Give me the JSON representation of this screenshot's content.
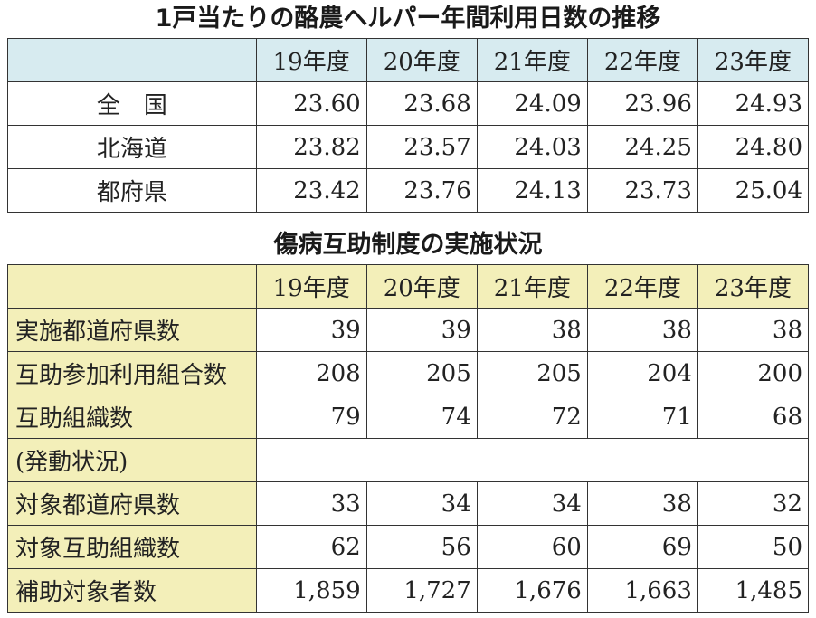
{
  "table1": {
    "title": "1戸当たりの酪農ヘルパー年間利用日数の推移",
    "years": [
      "19年度",
      "20年度",
      "21年度",
      "22年度",
      "23年度"
    ],
    "rows": [
      {
        "label": "全　国",
        "values": [
          "23.60",
          "23.68",
          "24.09",
          "23.96",
          "24.93"
        ]
      },
      {
        "label": "北海道",
        "values": [
          "23.82",
          "23.57",
          "24.03",
          "24.25",
          "24.80"
        ]
      },
      {
        "label": "都府県",
        "values": [
          "23.42",
          "23.76",
          "24.13",
          "23.73",
          "25.04"
        ]
      }
    ]
  },
  "table2": {
    "title": "傷病互助制度の実施状況",
    "years": [
      "19年度",
      "20年度",
      "21年度",
      "22年度",
      "23年度"
    ],
    "rows": [
      {
        "label": "実施都道府県数",
        "values": [
          "39",
          "39",
          "38",
          "38",
          "38"
        ]
      },
      {
        "label": "互助参加利用組合数",
        "values": [
          "208",
          "205",
          "205",
          "204",
          "200"
        ]
      },
      {
        "label": "互助組織数",
        "values": [
          "79",
          "74",
          "72",
          "71",
          "68"
        ]
      },
      {
        "label": "(発動状況)",
        "values": []
      },
      {
        "label": "対象都道府県数",
        "values": [
          "33",
          "34",
          "34",
          "38",
          "32"
        ]
      },
      {
        "label": "対象互助組織数",
        "values": [
          "62",
          "56",
          "60",
          "69",
          "50"
        ]
      },
      {
        "label": "補助対象者数",
        "values": [
          "1,859",
          "1,727",
          "1,676",
          "1,663",
          "1,485"
        ]
      }
    ]
  },
  "colors": {
    "table1_header_bg": "#d7ebf0",
    "table2_header_bg": "#f3efb9",
    "border": "#333333"
  }
}
